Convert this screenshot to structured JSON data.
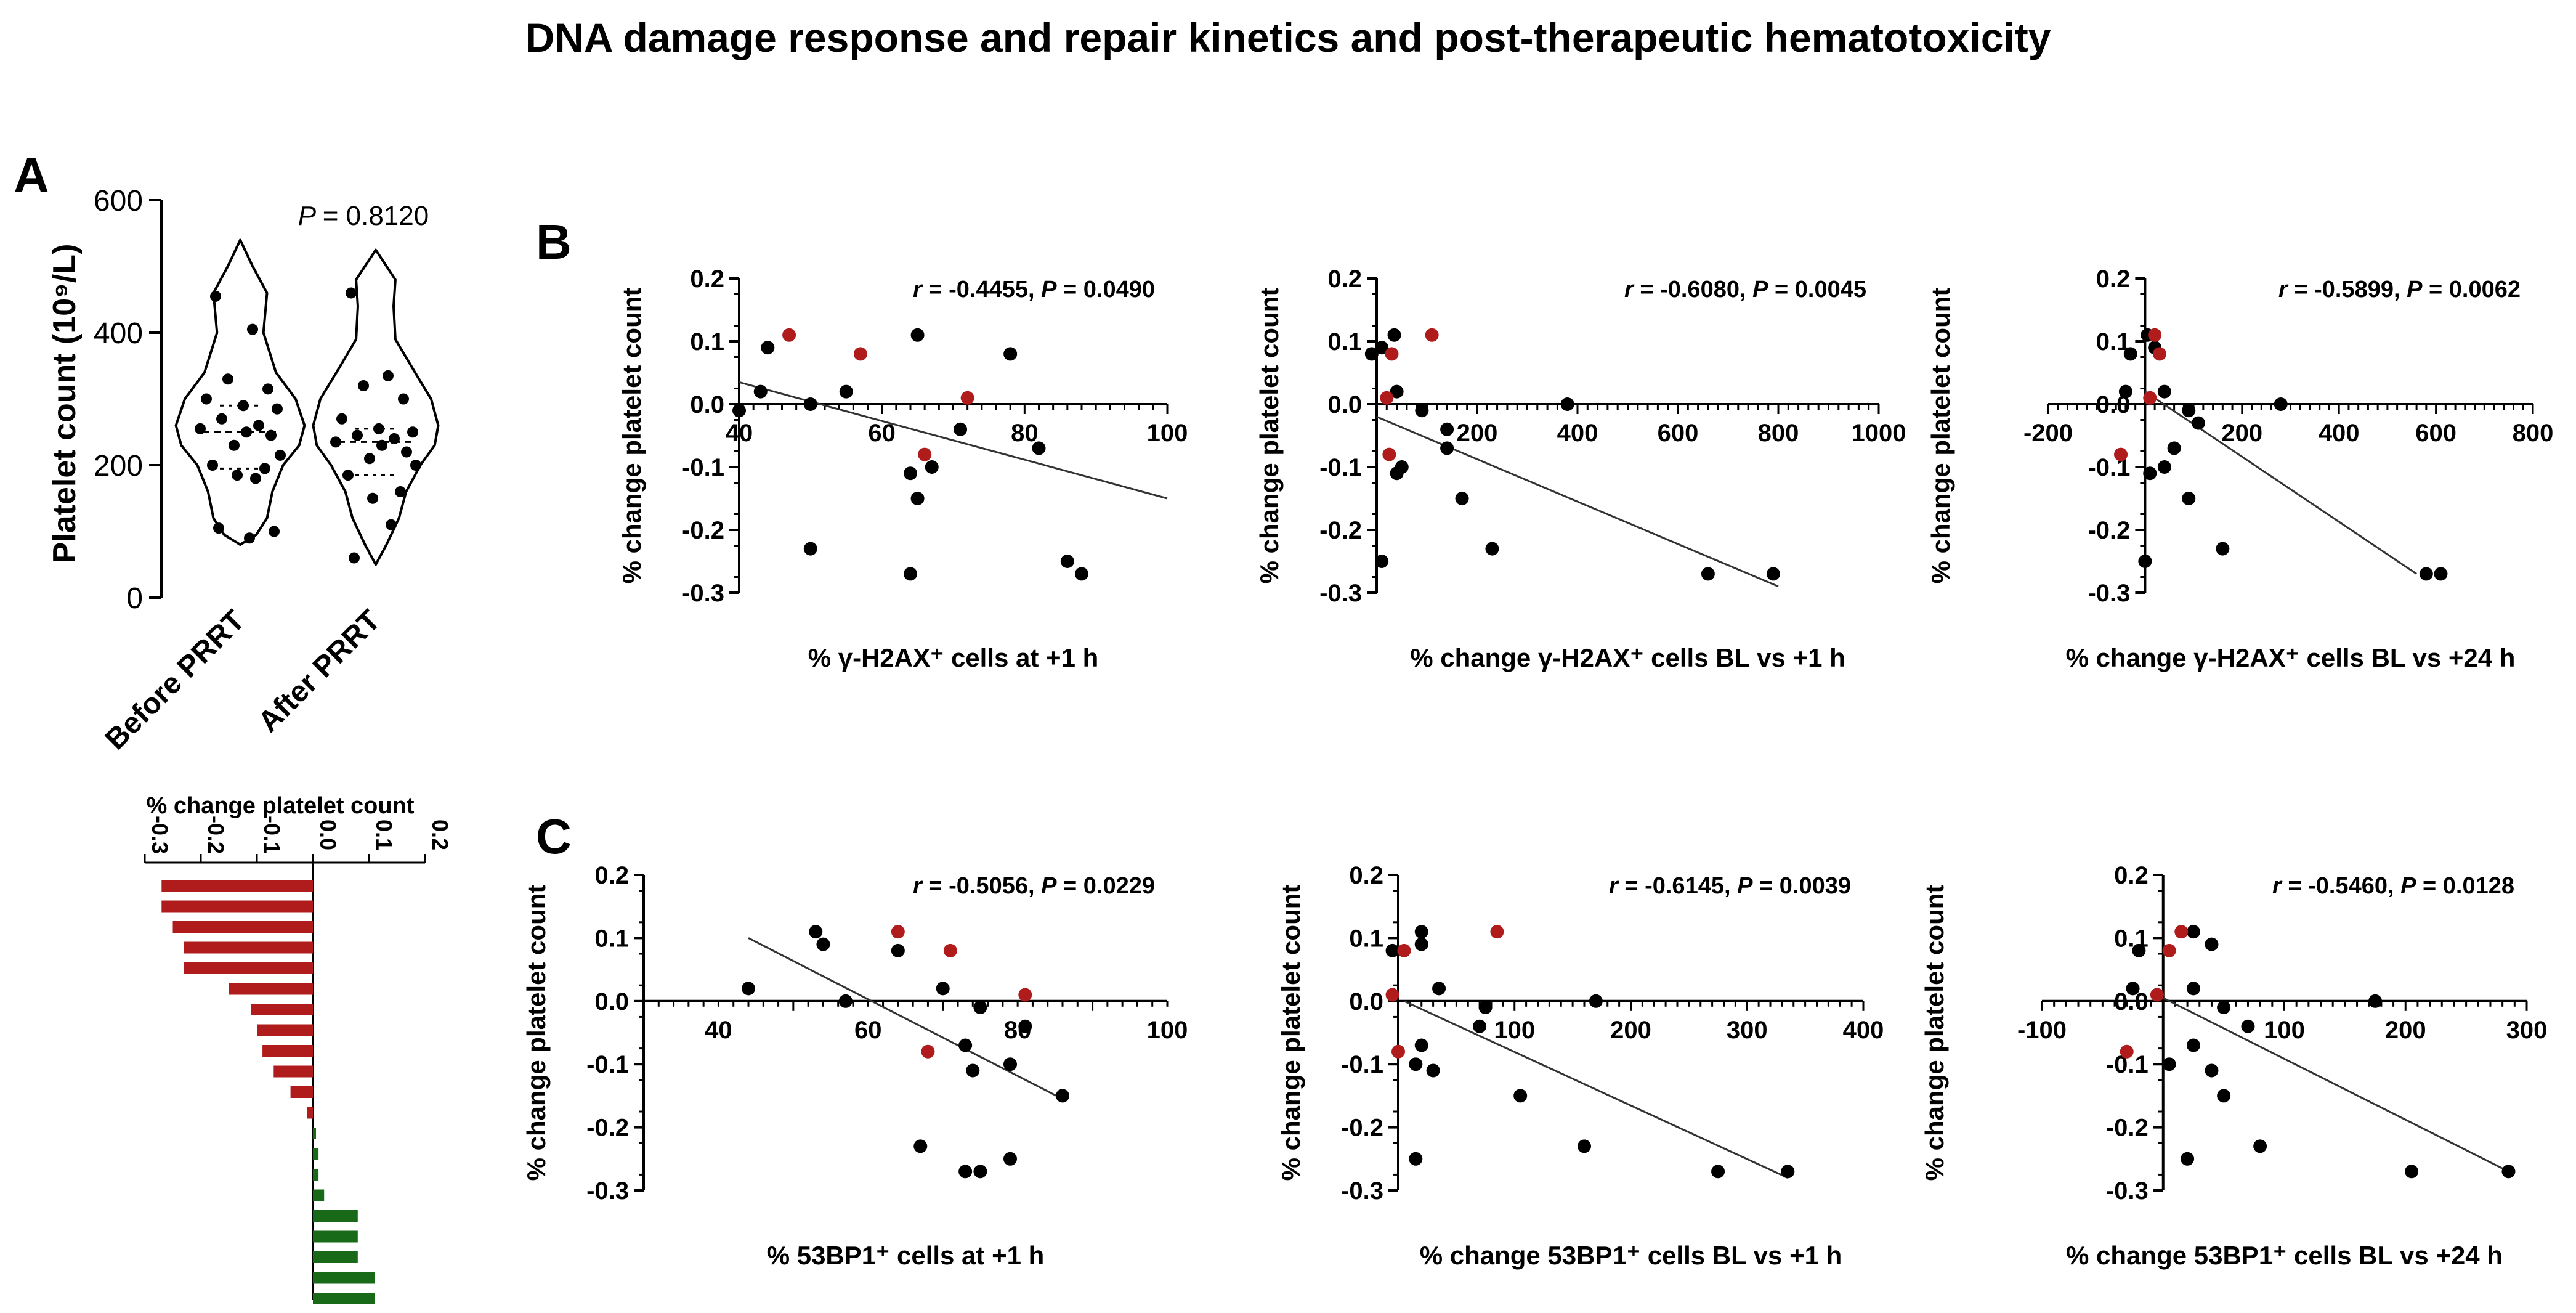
{
  "figure": {
    "title": "DNA damage response and repair kinetics and post-therapeutic hematotoxicity",
    "panel_labels": {
      "A": "A",
      "B": "B",
      "C": "C"
    }
  },
  "colors": {
    "black": "#000000",
    "red": "#b01c1c",
    "green": "#186a18",
    "line": "#333333"
  },
  "chart_data": [
    {
      "id": "A-violin",
      "type": "violin",
      "ylabel": "Platelet count (10⁹/L)",
      "ylim": [
        0,
        600
      ],
      "yticks": [
        "0",
        "200",
        "400",
        "600"
      ],
      "categories": [
        "Before PRRT",
        "After PRRT"
      ],
      "annotation": "P = 0.8120",
      "series": [
        {
          "values": [
            455,
            405,
            330,
            315,
            300,
            290,
            285,
            270,
            260,
            255,
            250,
            245,
            230,
            215,
            200,
            195,
            185,
            180,
            105,
            100,
            90
          ]
        },
        {
          "values": [
            460,
            335,
            320,
            300,
            270,
            255,
            250,
            245,
            240,
            235,
            230,
            220,
            210,
            200,
            185,
            160,
            150,
            110,
            60
          ]
        }
      ]
    },
    {
      "id": "A-bar",
      "type": "bar",
      "xlabel": "% change platelet count",
      "xlim": [
        -0.3,
        0.2
      ],
      "xticks": [
        "-0.3",
        "-0.2",
        "-0.1",
        "0.0",
        "0.1",
        "0.2"
      ],
      "values": [
        -0.27,
        -0.27,
        -0.25,
        -0.23,
        -0.23,
        -0.15,
        -0.11,
        -0.1,
        -0.09,
        -0.07,
        -0.04,
        -0.01,
        0.0,
        0.01,
        0.01,
        0.02,
        0.08,
        0.08,
        0.08,
        0.11,
        0.11
      ]
    },
    {
      "id": "B1",
      "type": "scatter",
      "xlabel": "% γ-H2AX⁺ cells at +1 h",
      "ylabel": "% change platelet count",
      "annotation_r": "-0.4455",
      "annotation_p": "0.0490",
      "xlim": [
        40,
        100
      ],
      "ylim": [
        -0.3,
        0.2
      ],
      "xticks": [
        "40",
        "60",
        "80",
        "100"
      ],
      "yticks": [
        "-0.3",
        "-0.2",
        "-0.1",
        "0.0",
        "0.1",
        "0.2"
      ],
      "fit": [
        [
          40,
          0.035
        ],
        [
          100,
          -0.15
        ]
      ],
      "points": [
        [
          44,
          0.09
        ],
        [
          43,
          0.02
        ],
        [
          40,
          -0.01
        ],
        [
          50,
          0.0
        ],
        [
          55,
          0.02
        ],
        [
          65,
          0.11
        ],
        [
          78,
          0.08
        ],
        [
          71,
          -0.04
        ],
        [
          67,
          -0.1
        ],
        [
          64,
          -0.11
        ],
        [
          65,
          -0.15
        ],
        [
          82,
          -0.07
        ],
        [
          50,
          -0.23
        ],
        [
          64,
          -0.27
        ],
        [
          86,
          -0.25
        ],
        [
          88,
          -0.27
        ]
      ],
      "highlight": [
        [
          47,
          0.11
        ],
        [
          57,
          0.08
        ],
        [
          66,
          -0.08
        ],
        [
          72,
          0.01
        ]
      ]
    },
    {
      "id": "B2",
      "type": "scatter",
      "xlabel": "% change γ-H2AX⁺ cells BL vs +1 h",
      "ylabel": "% change platelet count",
      "annotation_r": "-0.6080",
      "annotation_p": "0.0045",
      "xlim": [
        0,
        1000
      ],
      "ylim": [
        -0.3,
        0.2
      ],
      "xticks": [
        "200",
        "400",
        "600",
        "800",
        "1000"
      ],
      "yticks": [
        "-0.3",
        "-0.2",
        "-0.1",
        "0.0",
        "0.1",
        "0.2"
      ],
      "fit": [
        [
          0,
          -0.02
        ],
        [
          800,
          -0.29
        ]
      ],
      "points": [
        [
          -10,
          0.08
        ],
        [
          10,
          0.09
        ],
        [
          35,
          0.11
        ],
        [
          40,
          0.02
        ],
        [
          90,
          -0.01
        ],
        [
          380,
          0.0
        ],
        [
          140,
          -0.04
        ],
        [
          140,
          -0.07
        ],
        [
          50,
          -0.1
        ],
        [
          40,
          -0.11
        ],
        [
          170,
          -0.15
        ],
        [
          230,
          -0.23
        ],
        [
          10,
          -0.25
        ],
        [
          660,
          -0.27
        ],
        [
          790,
          -0.27
        ]
      ],
      "highlight": [
        [
          30,
          0.08
        ],
        [
          110,
          0.11
        ],
        [
          20,
          0.01
        ],
        [
          25,
          -0.08
        ]
      ]
    },
    {
      "id": "B3",
      "type": "scatter",
      "xlabel": "% change γ-H2AX⁺ cells BL vs +24 h",
      "ylabel": "% change platelet count",
      "annotation_r": "-0.5899",
      "annotation_p": "0.0062",
      "xlim": [
        -200,
        800
      ],
      "ylim": [
        -0.3,
        0.2
      ],
      "xticks": [
        "-200",
        "200",
        "400",
        "600",
        "800"
      ],
      "yticks": [
        "-0.3",
        "-0.2",
        "-0.1",
        "0.0",
        "0.1",
        "0.2"
      ],
      "fit": [
        [
          0,
          0.02
        ],
        [
          560,
          -0.27
        ]
      ],
      "points": [
        [
          -30,
          0.08
        ],
        [
          20,
          0.09
        ],
        [
          5,
          0.11
        ],
        [
          -40,
          0.02
        ],
        [
          40,
          0.02
        ],
        [
          90,
          -0.01
        ],
        [
          280,
          0.0
        ],
        [
          110,
          -0.03
        ],
        [
          60,
          -0.07
        ],
        [
          40,
          -0.1
        ],
        [
          10,
          -0.11
        ],
        [
          90,
          -0.15
        ],
        [
          160,
          -0.23
        ],
        [
          0,
          -0.25
        ],
        [
          580,
          -0.27
        ],
        [
          610,
          -0.27
        ]
      ],
      "highlight": [
        [
          20,
          0.11
        ],
        [
          30,
          0.08
        ],
        [
          -50,
          -0.08
        ],
        [
          10,
          0.01
        ]
      ]
    },
    {
      "id": "C1",
      "type": "scatter",
      "xlabel": "% 53BP1⁺ cells at +1 h",
      "ylabel": "% change platelet count",
      "annotation_r": "-0.5056",
      "annotation_p": "0.0229",
      "xlim": [
        30,
        100
      ],
      "ylim": [
        -0.3,
        0.2
      ],
      "xticks": [
        "40",
        "60",
        "80",
        "100"
      ],
      "yticks": [
        "-0.3",
        "-0.2",
        "-0.1",
        "0.0",
        "0.1",
        "0.2"
      ],
      "fit": [
        [
          44,
          0.1
        ],
        [
          86,
          -0.155
        ]
      ],
      "points": [
        [
          53,
          0.11
        ],
        [
          54,
          0.09
        ],
        [
          64,
          0.08
        ],
        [
          44,
          0.02
        ],
        [
          57,
          0.0
        ],
        [
          70,
          0.02
        ],
        [
          75,
          -0.01
        ],
        [
          81,
          -0.04
        ],
        [
          73,
          -0.07
        ],
        [
          74,
          -0.11
        ],
        [
          79,
          -0.1
        ],
        [
          86,
          -0.15
        ],
        [
          67,
          -0.23
        ],
        [
          73,
          -0.27
        ],
        [
          75,
          -0.27
        ],
        [
          79,
          -0.25
        ]
      ],
      "highlight": [
        [
          64,
          0.11
        ],
        [
          71,
          0.08
        ],
        [
          81,
          0.01
        ],
        [
          68,
          -0.08
        ]
      ]
    },
    {
      "id": "C2",
      "type": "scatter",
      "xlabel": "% change 53BP1⁺ cells BL vs +1 h",
      "ylabel": "% change platelet count",
      "annotation_r": "-0.6145",
      "annotation_p": "0.0039",
      "xlim": [
        0,
        400
      ],
      "ylim": [
        -0.3,
        0.2
      ],
      "xticks": [
        "100",
        "200",
        "300",
        "400"
      ],
      "yticks": [
        "-0.3",
        "-0.2",
        "-0.1",
        "0.0",
        "0.1",
        "0.2"
      ],
      "fit": [
        [
          5,
          0.0
        ],
        [
          335,
          -0.28
        ]
      ],
      "points": [
        [
          -5,
          0.08
        ],
        [
          20,
          0.11
        ],
        [
          20,
          0.09
        ],
        [
          35,
          0.02
        ],
        [
          75,
          -0.01
        ],
        [
          70,
          -0.04
        ],
        [
          170,
          0.0
        ],
        [
          20,
          -0.07
        ],
        [
          15,
          -0.1
        ],
        [
          30,
          -0.11
        ],
        [
          105,
          -0.15
        ],
        [
          160,
          -0.23
        ],
        [
          15,
          -0.25
        ],
        [
          275,
          -0.27
        ],
        [
          335,
          -0.27
        ]
      ],
      "highlight": [
        [
          -5,
          0.01
        ],
        [
          5,
          0.08
        ],
        [
          85,
          0.11
        ],
        [
          0,
          -0.08
        ]
      ]
    },
    {
      "id": "C3",
      "type": "scatter",
      "xlabel": "% change 53BP1⁺ cells BL vs +24 h",
      "ylabel": "% change platelet count",
      "annotation_r": "-0.5460",
      "annotation_p": "0.0128",
      "xlim": [
        -100,
        300
      ],
      "ylim": [
        -0.3,
        0.2
      ],
      "xticks": [
        "-100",
        "100",
        "200",
        "300"
      ],
      "yticks": [
        "-0.3",
        "-0.2",
        "-0.1",
        "0.0",
        "0.1",
        "0.2"
      ],
      "fit": [
        [
          0,
          0.005
        ],
        [
          285,
          -0.27
        ]
      ],
      "points": [
        [
          -20,
          0.08
        ],
        [
          25,
          0.11
        ],
        [
          40,
          0.09
        ],
        [
          -25,
          0.02
        ],
        [
          25,
          0.02
        ],
        [
          50,
          -0.01
        ],
        [
          70,
          -0.04
        ],
        [
          175,
          0.0
        ],
        [
          25,
          -0.07
        ],
        [
          5,
          -0.1
        ],
        [
          40,
          -0.11
        ],
        [
          50,
          -0.15
        ],
        [
          80,
          -0.23
        ],
        [
          20,
          -0.25
        ],
        [
          205,
          -0.27
        ],
        [
          285,
          -0.27
        ]
      ],
      "highlight": [
        [
          -30,
          -0.08
        ],
        [
          15,
          0.11
        ],
        [
          5,
          0.08
        ],
        [
          -5,
          0.01
        ]
      ]
    }
  ]
}
